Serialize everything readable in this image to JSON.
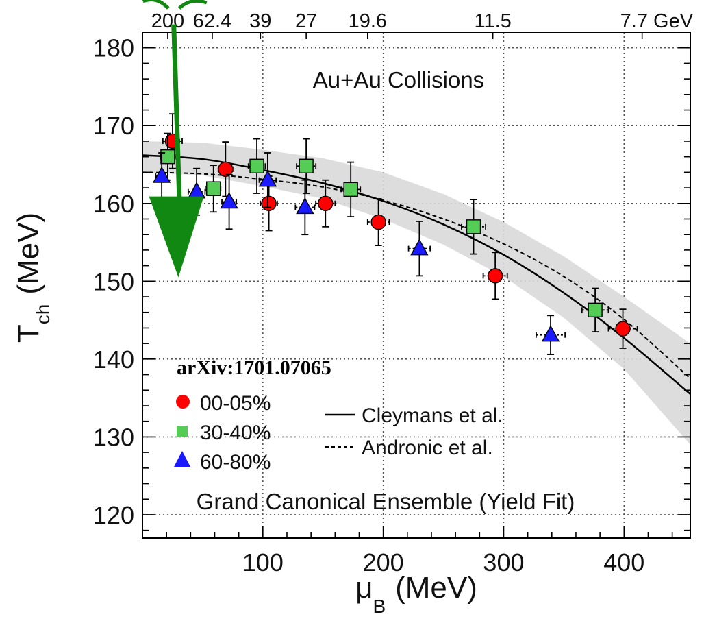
{
  "chart_data": {
    "type": "scatter",
    "title": "Au+Au Collisions",
    "subtitle": "Grand Canonical Ensemble (Yield Fit)",
    "reference": "arXiv:1701.07065",
    "xlabel": {
      "main": "μ",
      "sub": "B",
      "unit": "(MeV)"
    },
    "ylabel": {
      "main": "T",
      "sub": "ch",
      "unit": "(MeV)"
    },
    "xlim": [
      0,
      455
    ],
    "ylim": [
      117,
      182
    ],
    "xticks": [
      100,
      200,
      300,
      400
    ],
    "yticks": [
      120,
      130,
      140,
      150,
      160,
      170,
      180
    ],
    "grid": true,
    "top_axis": {
      "labels": [
        "200",
        "62.4",
        "39",
        "27",
        "19.6",
        "11.5",
        "7.7 GeV"
      ],
      "positions": [
        21,
        58,
        98,
        136,
        187,
        291,
        415
      ]
    },
    "series": [
      {
        "name": "00-05%",
        "marker": "circle",
        "color": "#ff0000",
        "points": [
          {
            "x": 25,
            "y": 168.0,
            "xerr": 8,
            "yerr": 3.5
          },
          {
            "x": 69,
            "y": 164.4,
            "xerr": 6,
            "yerr": 3.5
          },
          {
            "x": 105,
            "y": 160.0,
            "xerr": 7,
            "yerr": 3.5
          },
          {
            "x": 152,
            "y": 160.0,
            "xerr": 8,
            "yerr": 3.0
          },
          {
            "x": 196,
            "y": 157.6,
            "xerr": 9,
            "yerr": 3.0
          },
          {
            "x": 293,
            "y": 150.7,
            "xerr": 10,
            "yerr": 3.0
          },
          {
            "x": 399,
            "y": 143.9,
            "xerr": 12,
            "yerr": 2.5
          }
        ]
      },
      {
        "name": "30-40%",
        "marker": "square",
        "color": "#55cc55",
        "points": [
          {
            "x": 21,
            "y": 166.0,
            "xerr": 6,
            "yerr": 3.0
          },
          {
            "x": 59,
            "y": 161.9,
            "xerr": 6,
            "yerr": 3.0
          },
          {
            "x": 95,
            "y": 164.8,
            "xerr": 7,
            "yerr": 3.5
          },
          {
            "x": 136,
            "y": 164.8,
            "xerr": 8,
            "yerr": 3.5
          },
          {
            "x": 173,
            "y": 161.8,
            "xerr": 8,
            "yerr": 3.5
          },
          {
            "x": 275,
            "y": 157.0,
            "xerr": 10,
            "yerr": 3.5
          },
          {
            "x": 376,
            "y": 146.3,
            "xerr": 11,
            "yerr": 2.8
          }
        ]
      },
      {
        "name": "60-80%",
        "marker": "triangle",
        "color": "#1a1aff",
        "points": [
          {
            "x": 16,
            "y": 163.5,
            "xerr": 5,
            "yerr": 3.0
          },
          {
            "x": 45,
            "y": 161.5,
            "xerr": 7,
            "yerr": 3.0
          },
          {
            "x": 72,
            "y": 160.2,
            "xerr": 6,
            "yerr": 3.5
          },
          {
            "x": 104,
            "y": 163.0,
            "xerr": 7,
            "yerr": 3.5
          },
          {
            "x": 135,
            "y": 159.5,
            "xerr": 8,
            "yerr": 3.5
          },
          {
            "x": 230,
            "y": 154.2,
            "xerr": 9,
            "yerr": 3.5
          },
          {
            "x": 339,
            "y": 143.1,
            "xerr": 12,
            "yerr": 2.5
          }
        ]
      }
    ],
    "curves": [
      {
        "name": "Cleymans et al.",
        "style": "solid",
        "x": [
          0,
          50,
          100,
          150,
          200,
          250,
          300,
          350,
          400,
          455
        ],
        "y": [
          166.2,
          165.7,
          164.3,
          162.6,
          160.3,
          157.3,
          153.4,
          148.5,
          142.7,
          135.5
        ]
      },
      {
        "name": "Andronic et al.",
        "style": "dashed",
        "x": [
          0,
          50,
          100,
          150,
          200,
          250,
          300,
          350,
          400,
          455
        ],
        "y": [
          164.0,
          163.8,
          163.1,
          162.1,
          160.4,
          158.0,
          154.8,
          150.6,
          145.1,
          137.5
        ]
      }
    ],
    "band": {
      "color": "#d9d9d9",
      "x": [
        0,
        50,
        100,
        150,
        200,
        250,
        300,
        350,
        400,
        455
      ],
      "upper": [
        168.0,
        167.8,
        166.9,
        165.8,
        164.0,
        161.2,
        157.6,
        153.2,
        148.0,
        142.0
      ],
      "lower": [
        164.0,
        163.6,
        162.2,
        160.6,
        158.0,
        154.7,
        150.6,
        145.3,
        138.7,
        129.0
      ]
    },
    "overlay_arrow": {
      "color": "#118811",
      "x_start": 26,
      "y_start": 183,
      "x_end": 31,
      "y_end": 150.5
    }
  }
}
